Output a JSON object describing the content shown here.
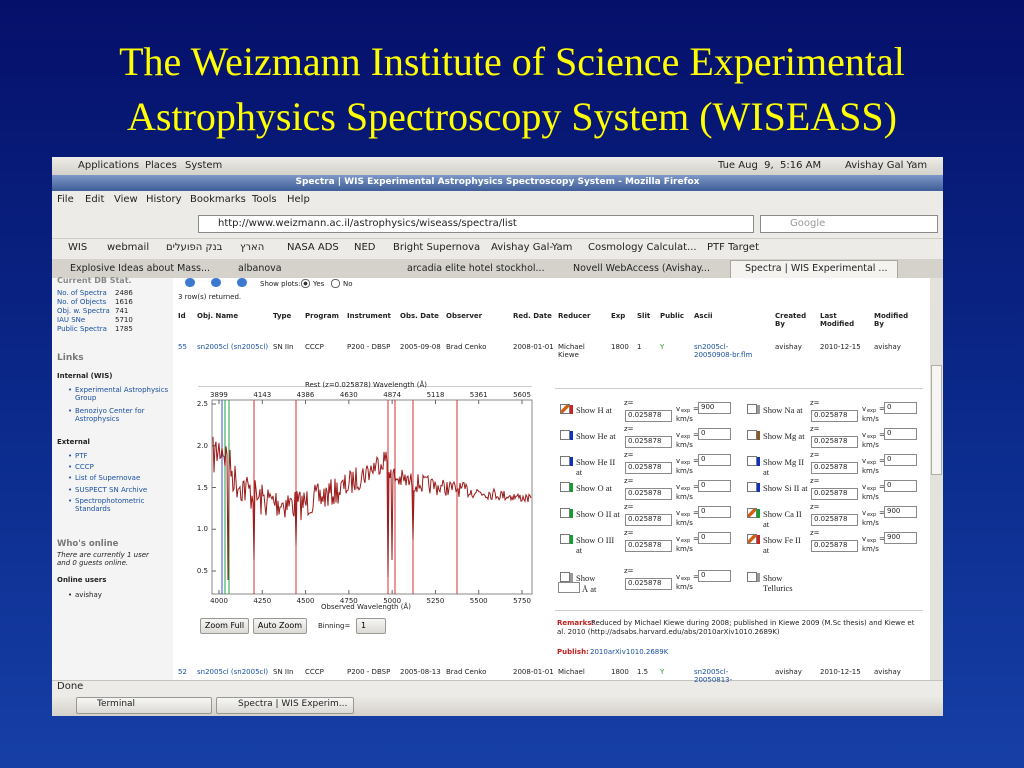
{
  "slide_title": [
    "The Weizmann Institute of Science Experimental",
    "Astrophysics Spectroscopy System (WISEASS)"
  ],
  "panel": {
    "menus": [
      "Applications",
      "Places",
      "System"
    ],
    "clock": "Tue Aug  9,  5:16 AM",
    "user": "Avishay Gal Yam"
  },
  "window_title": "Spectra | WIS Experimental Astrophysics Spectroscopy System - Mozilla Firefox",
  "menubar": [
    "File",
    "Edit",
    "View",
    "History",
    "Bookmarks",
    "Tools",
    "Help"
  ],
  "url": "http://www.weizmann.ac.il/astrophysics/wiseass/spectra/list",
  "search": "Google",
  "bookmarks": [
    "WIS",
    "webmail",
    "בנק הפועלים",
    "הארץ",
    "NASA ADS",
    "NED",
    "Bright Supernova",
    "Avishay Gal-Yam",
    "Cosmology Calculat...",
    "PTF Target"
  ],
  "tabs": [
    "Explosive Ideas about Mass...",
    "albanova",
    "arcadia elite hotel stockhol...",
    "Novell WebAccess (Avishay...",
    "Spectra | WIS Experimental ..."
  ],
  "sidebar": {
    "db_heading": "Current DB Stat.",
    "stats": [
      [
        "No. of Spectra",
        "2486"
      ],
      [
        "No. of Objects",
        "1616"
      ],
      [
        "Obj. w. Spectra",
        "741"
      ],
      [
        "IAU SNe",
        "5710"
      ],
      [
        "Public Spectra",
        "1785"
      ]
    ],
    "links_heading": "Links",
    "internal_heading": "Internal (WIS)",
    "internal": [
      "Experimental Astrophysics Group",
      "Benoziyo Center for Astrophysics"
    ],
    "external_heading": "External",
    "external": [
      "PTF",
      "CCCP",
      "List of Supernovae",
      "SUSPECT SN Archive",
      "Spectrophotometric Standards"
    ],
    "online_heading": "Who's online",
    "online_text": "There are currently 1 user and 0 guests online.",
    "users_heading": "Online users",
    "users": [
      "avishay"
    ]
  },
  "main": {
    "show_plots": "Show plots:",
    "yes": "Yes",
    "no": "No",
    "rows_returned": "3 row(s) returned.",
    "columns": [
      "Id",
      "Obj. Name",
      "Type",
      "Program",
      "Instrument",
      "Obs. Date",
      "Observer",
      "Red. Date",
      "Reducer",
      "Exp",
      "Slit",
      "Public",
      "Ascii",
      "Created By",
      "Last Modified",
      "Modified By"
    ],
    "rows": [
      [
        "55",
        "sn2005cl (sn2005cl)",
        "SN IIn",
        "CCCP",
        "P200 - DBSP",
        "2005-09-08",
        "Brad Cenko",
        "2008-01-01",
        "Michael Kiewe",
        "1800",
        "1",
        "Y",
        "sn2005cl-20050908-br.flm",
        "avishay",
        "2010-12-15",
        "avishay"
      ],
      [
        "52",
        "sn2005cl (sn2005cl)",
        "SN IIn",
        "CCCP",
        "P200 - DBSP",
        "2005-08-13",
        "Brad Cenko",
        "2008-01-01",
        "Michael",
        "1800",
        "1.5",
        "Y",
        "sn2005cl-20050813-",
        "avishay",
        "2010-12-15",
        "avishay"
      ]
    ],
    "plot": {
      "title": "Rest (z=0.025878) Wavelength (Å)",
      "redshift": 0.025878,
      "top_ticks": [
        3899,
        4143,
        4386,
        4630,
        4874,
        5118,
        5361,
        5605
      ],
      "bottom_ticks": [
        4000,
        4250,
        4500,
        4750,
        5000,
        5250,
        5500,
        5750
      ],
      "xlabel": "Observed Wavelength (Å)",
      "yticks": [
        {
          "value": 2.5,
          "label": "2.5"
        },
        {
          "value": 2.0,
          "label": "2.0"
        },
        {
          "value": 1.5,
          "label": "1.5"
        },
        {
          "value": 1.0,
          "label": "1.0"
        },
        {
          "value": 0.5,
          "label": "0.5"
        }
      ]
    },
    "zoom_full": "Zoom Full",
    "auto_zoom": "Auto Zoom",
    "binning": "Binning=",
    "binning_value": "1",
    "z_label": "z=",
    "v_label": "v",
    "v_sub": "exp",
    "v_eq": "=",
    "km_s": "km/s",
    "lines_left": [
      {
        "label": "Show H at",
        "checked": true,
        "color": "#d02020",
        "z": "0.025878",
        "v": "900"
      },
      {
        "label": "Show He at",
        "checked": false,
        "color": "#1030c0",
        "z": "0.025878",
        "v": "0"
      },
      {
        "label": "Show He II at",
        "checked": false,
        "color": "#1030c0",
        "z": "0.025878",
        "v": "0"
      },
      {
        "label": "Show O at",
        "checked": false,
        "color": "#10a030",
        "z": "0.025878",
        "v": "0"
      },
      {
        "label": "Show O II at",
        "checked": false,
        "color": "#10a030",
        "z": "0.025878",
        "v": "0"
      },
      {
        "label": "Show O III at",
        "checked": false,
        "color": "#10a030",
        "z": "0.025878",
        "v": "0"
      },
      {
        "label": "Show",
        "label2": "Å at",
        "checked": false,
        "color": "#999999",
        "z": "0.025878",
        "v": "0"
      }
    ],
    "lines_right": [
      {
        "label": "Show Na at",
        "checked": false,
        "color": "#999999",
        "z": "0.025878",
        "v": "0"
      },
      {
        "label": "Show Mg at",
        "checked": false,
        "color": "#8a5a2a",
        "z": "0.025878",
        "v": "0"
      },
      {
        "label": "Show Mg II at",
        "checked": false,
        "color": "#1030c0",
        "z": "0.025878",
        "v": "0"
      },
      {
        "label": "Show Si II at",
        "checked": false,
        "color": "#1030c0",
        "z": "0.025878",
        "v": "0"
      },
      {
        "label": "Show Ca II at",
        "checked": true,
        "color": "#10a030",
        "z": "0.025878",
        "v": "900"
      },
      {
        "label": "Show Fe II at",
        "checked": true,
        "color": "#d02020",
        "z": "0.025878",
        "v": "900"
      },
      {
        "label": "Show Tellurics",
        "checked": false,
        "color": "#999999"
      }
    ],
    "remarks_label": "Remarks:",
    "remarks": "Reduced by Michael Kiewe during 2008; published in Kiewe 2009 (M.Sc thesis) and Kiewe et al. 2010 (http://adsabs.harvard.edu/abs/2010arXiv1010.2689K)",
    "publish_label": "Publish:",
    "publish": "2010arXiv1010.2689K"
  },
  "status": "Done",
  "taskbar": [
    "Terminal",
    "Spectra | WIS Experim..."
  ]
}
